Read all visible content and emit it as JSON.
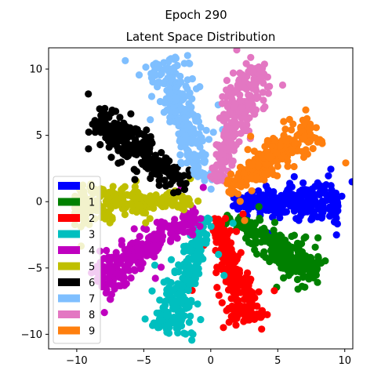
{
  "suptitle": "Epoch 290",
  "chart_data": {
    "type": "scatter",
    "title": "Latent Space Distribution",
    "xlabel": "",
    "ylabel": "",
    "xlim": [
      -12.1,
      10.6
    ],
    "ylim": [
      -11.1,
      11.6
    ],
    "x_ticks": [
      -10,
      -5,
      0,
      5,
      10
    ],
    "y_ticks": [
      -10,
      -5,
      0,
      5,
      10
    ],
    "grid": false,
    "legend_placement": "lower-left",
    "series": [
      {
        "name": "0",
        "color": "#0000ff",
        "angle_deg": 0,
        "r_min": 1.5,
        "r_max": 9.6
      },
      {
        "name": "1",
        "color": "#008000",
        "angle_deg": -36,
        "r_min": 1.5,
        "r_max": 9.6
      },
      {
        "name": "2",
        "color": "#ff0000",
        "angle_deg": -72,
        "r_min": 1.2,
        "r_max": 9.6
      },
      {
        "name": "3",
        "color": "#00bfbf",
        "angle_deg": -108,
        "r_min": 1.2,
        "r_max": 10.4
      },
      {
        "name": "4",
        "color": "#bf00bf",
        "angle_deg": -144,
        "r_min": 1.2,
        "r_max": 10.5
      },
      {
        "name": "5",
        "color": "#bfbf00",
        "angle_deg": 180,
        "r_min": 1.5,
        "r_max": 10.2
      },
      {
        "name": "6",
        "color": "#000000",
        "angle_deg": 144,
        "r_min": 2.0,
        "r_max": 10.6
      },
      {
        "name": "7",
        "color": "#7fbfff",
        "angle_deg": 108,
        "r_min": 1.5,
        "r_max": 11.2
      },
      {
        "name": "8",
        "color": "#e377c2",
        "angle_deg": 72,
        "r_min": 1.5,
        "r_max": 10.8
      },
      {
        "name": "9",
        "color": "#ff7f0e",
        "angle_deg": 36,
        "r_min": 1.5,
        "r_max": 9.5
      }
    ]
  }
}
